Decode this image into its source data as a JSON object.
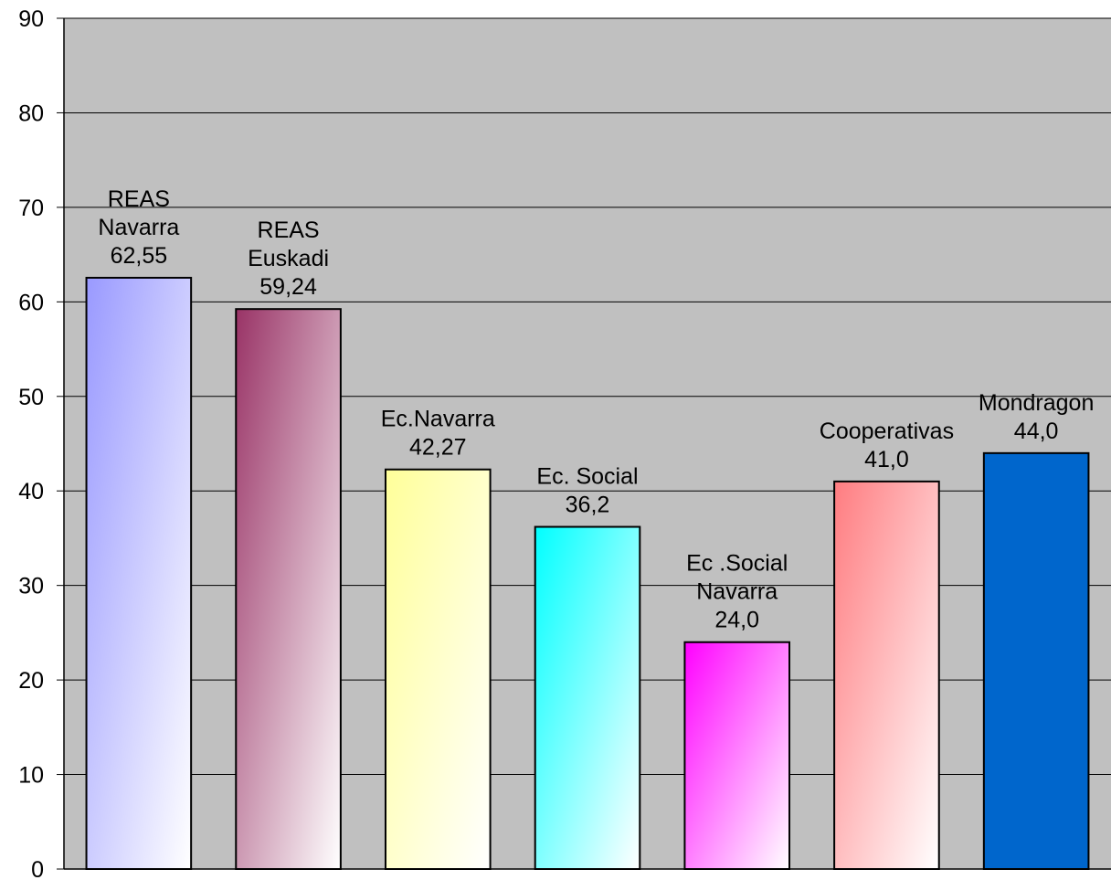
{
  "chart_data": {
    "type": "bar",
    "title": "",
    "xlabel": "",
    "ylabel": "",
    "ylim": [
      0,
      90
    ],
    "yticks": [
      0,
      10,
      20,
      30,
      40,
      50,
      60,
      70,
      80,
      90
    ],
    "grid": true,
    "legend": "none",
    "plot_background": "#c0c0c0",
    "categories": [
      "REAS Navarra",
      "REAS Euskadi",
      "Ec.Navarra",
      "Ec. Social",
      "Ec .Social Navarra",
      "Cooperativas",
      "Mondragon"
    ],
    "values": [
      62.55,
      59.24,
      42.27,
      36.2,
      24.0,
      41.0,
      44.0
    ],
    "data_labels": [
      [
        "REAS",
        "Navarra",
        "62,55"
      ],
      [
        "REAS",
        "Euskadi",
        "59,24"
      ],
      [
        "Ec.Navarra",
        "42,27"
      ],
      [
        "Ec. Social",
        "36,2"
      ],
      [
        "Ec .Social",
        "Navarra",
        "24,0"
      ],
      [
        "Cooperativas",
        "41,0"
      ],
      [
        "Mondragon",
        "44,0"
      ]
    ],
    "colors": [
      [
        "#9999ff",
        "#ffffff"
      ],
      [
        "#993366",
        "#ffffff"
      ],
      [
        "#ffff99",
        "#ffffff"
      ],
      [
        "#00ffff",
        "#ffffff"
      ],
      [
        "#ff00ff",
        "#ffffff"
      ],
      [
        "#ff7c80",
        "#ffffff"
      ],
      [
        "#0066cc",
        "#0066cc"
      ]
    ]
  }
}
